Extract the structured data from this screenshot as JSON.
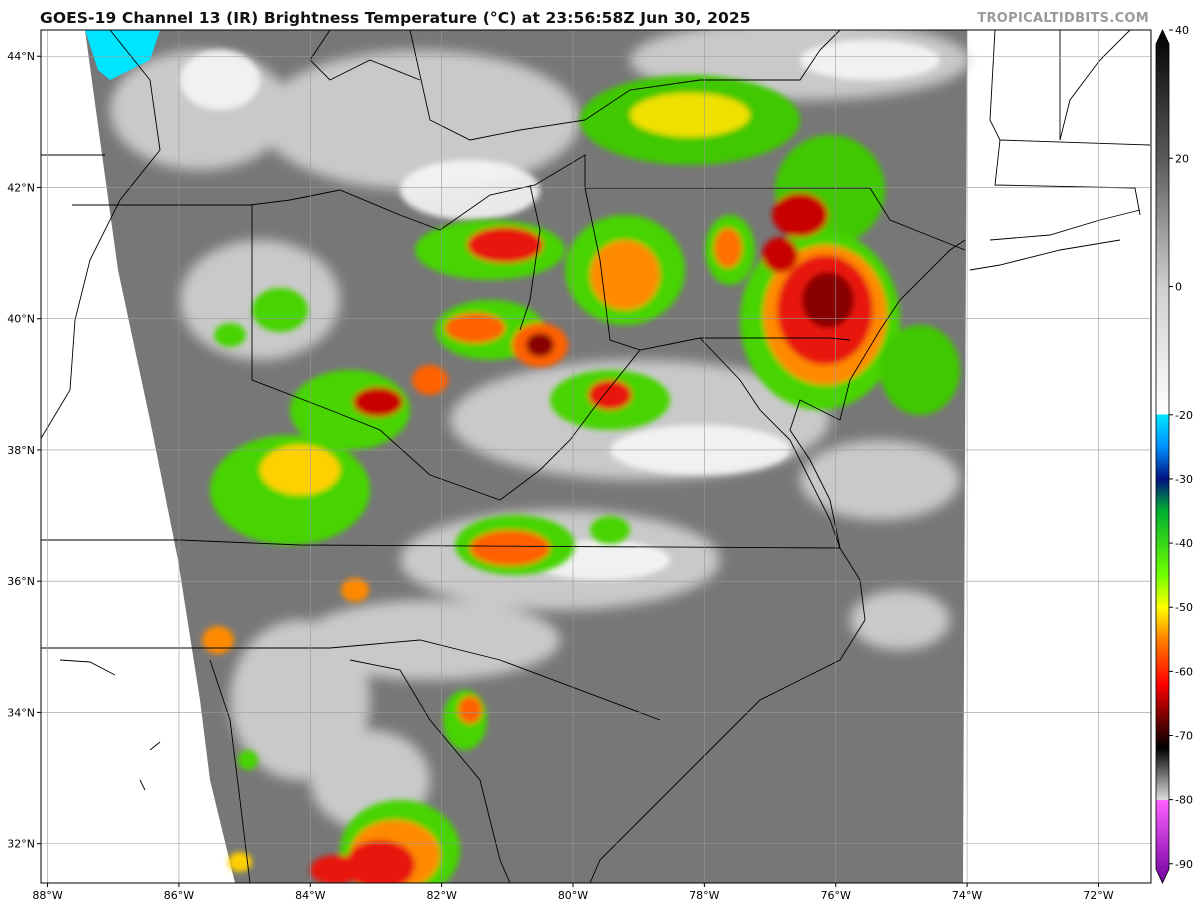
{
  "header": {
    "title": "GOES-19 Channel 13 (IR) Brightness Temperature (°C) at 23:56:58Z Jun 30, 2025",
    "credit": "TROPICALTIDBITS.COM"
  },
  "map": {
    "projection": "lat-lon",
    "lon_range": [
      -88.1,
      -71.2
    ],
    "lat_range": [
      31.4,
      44.4
    ],
    "grid": true,
    "lon_ticks": [
      {
        "value": -88,
        "label": "88°W"
      },
      {
        "value": -86,
        "label": "86°W"
      },
      {
        "value": -84,
        "label": "84°W"
      },
      {
        "value": -82,
        "label": "82°W"
      },
      {
        "value": -80,
        "label": "80°W"
      },
      {
        "value": -78,
        "label": "78°W"
      },
      {
        "value": -76,
        "label": "76°W"
      },
      {
        "value": -74,
        "label": "74°W"
      },
      {
        "value": -72,
        "label": "72°W"
      }
    ],
    "lat_ticks": [
      {
        "value": 32,
        "label": "32°N"
      },
      {
        "value": 34,
        "label": "34°N"
      },
      {
        "value": 36,
        "label": "36°N"
      },
      {
        "value": 38,
        "label": "38°N"
      },
      {
        "value": 40,
        "label": "40°N"
      },
      {
        "value": 42,
        "label": "42°N"
      },
      {
        "value": 44,
        "label": "44°N"
      }
    ]
  },
  "colorbar": {
    "range": [
      -93,
      40
    ],
    "ticks": [
      "40",
      "20",
      "0",
      "-20",
      "-30",
      "-40",
      "-50",
      "-60",
      "-70",
      "-80",
      "-90"
    ],
    "tick_values": [
      40,
      20,
      0,
      -20,
      -30,
      -40,
      -50,
      -60,
      -70,
      -80,
      -90
    ],
    "stops": [
      {
        "v": 40,
        "c": "#000000"
      },
      {
        "v": 20,
        "c": "#5a5a5a"
      },
      {
        "v": 0,
        "c": "#cfcfcf"
      },
      {
        "v": -19.9,
        "c": "#ffffff"
      },
      {
        "v": -20,
        "c": "#00e5ff"
      },
      {
        "v": -25,
        "c": "#0090ff"
      },
      {
        "v": -30,
        "c": "#001080"
      },
      {
        "v": -35,
        "c": "#00b030"
      },
      {
        "v": -45,
        "c": "#70ff00"
      },
      {
        "v": -50,
        "c": "#ffff00"
      },
      {
        "v": -55,
        "c": "#ff8000"
      },
      {
        "v": -62,
        "c": "#ff0000"
      },
      {
        "v": -68,
        "c": "#600000"
      },
      {
        "v": -72,
        "c": "#000000"
      },
      {
        "v": -80,
        "c": "#dddddd"
      },
      {
        "v": -80.1,
        "c": "#ff60ff"
      },
      {
        "v": -93,
        "c": "#7000a0"
      }
    ]
  },
  "palette": {
    "cloud_gray": "#7a7a7a",
    "cloud_light": "#dcdcdc",
    "cold_top_green": "#46d400",
    "cold_top_yellow": "#fff200",
    "cold_top_red": "#e8140a"
  }
}
